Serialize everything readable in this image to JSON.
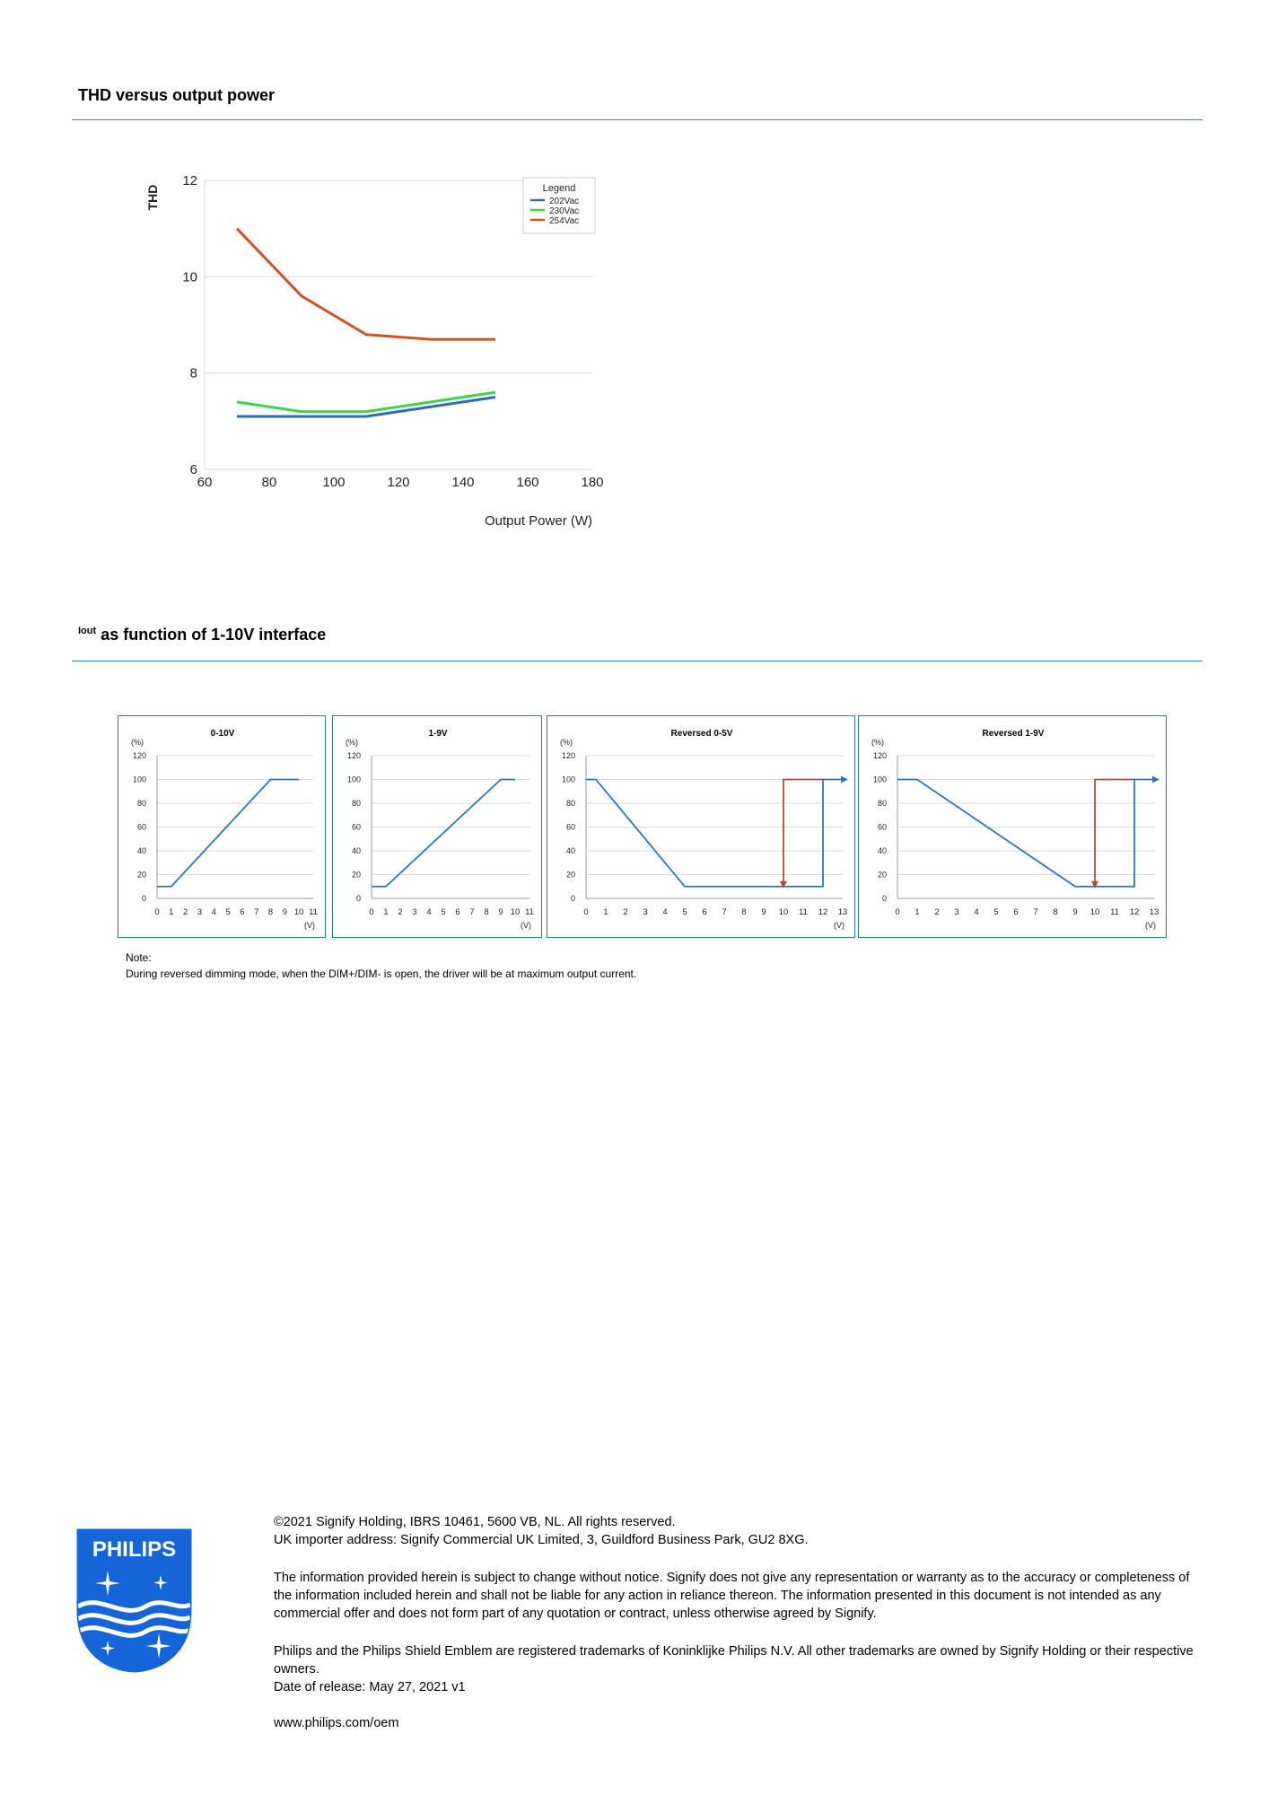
{
  "sections": {
    "thd_title": "THD versus output power",
    "iout_prefix": "Iout",
    "iout_title": "as function of 1-10V interface"
  },
  "chart_data": [
    {
      "type": "line",
      "title": "",
      "xlabel": "Output Power (W)",
      "ylabel": "THD",
      "xlim": [
        60,
        180
      ],
      "ylim": [
        6,
        12
      ],
      "xticks": [
        60,
        80,
        100,
        120,
        140,
        160,
        180
      ],
      "yticks": [
        6,
        8,
        10,
        12
      ],
      "grid": true,
      "legend_title": "Legend",
      "legend_position": "top-right",
      "series": [
        {
          "name": "202Vac",
          "color": "#2e6db0",
          "x": [
            70,
            90,
            110,
            130,
            150
          ],
          "y": [
            7.1,
            7.1,
            7.1,
            7.3,
            7.5
          ]
        },
        {
          "name": "230Vac",
          "color": "#3fd24a",
          "x": [
            70,
            90,
            110,
            130,
            150
          ],
          "y": [
            7.4,
            7.2,
            7.2,
            7.4,
            7.6
          ]
        },
        {
          "name": "254Vac",
          "color": "#cc5528",
          "x": [
            70,
            90,
            110,
            130,
            150
          ],
          "y": [
            11.0,
            9.6,
            8.8,
            8.7,
            8.7
          ]
        }
      ]
    },
    {
      "type": "line",
      "title": "0-10V",
      "ylabel": "(%)",
      "xlabel": "(V)",
      "xlim": [
        0,
        11
      ],
      "ylim": [
        0,
        120
      ],
      "xticks": [
        "0",
        "1",
        "2",
        "3",
        "4",
        "5",
        "6",
        "7",
        "8",
        "9",
        "10",
        "11"
      ],
      "yticks": [
        "0",
        "20",
        "40",
        "60",
        "80",
        "100",
        "120"
      ],
      "series": [
        {
          "color": "#2e75b6",
          "x": [
            0,
            1,
            8,
            10
          ],
          "y": [
            10,
            10,
            100,
            100
          ]
        }
      ]
    },
    {
      "type": "line",
      "title": "1-9V",
      "ylabel": "(%)",
      "xlabel": "(V)",
      "xlim": [
        0,
        11
      ],
      "ylim": [
        0,
        120
      ],
      "xticks": [
        "0",
        "1",
        "2",
        "3",
        "4",
        "5",
        "6",
        "7",
        "8",
        "9",
        "10",
        "11"
      ],
      "yticks": [
        "0",
        "20",
        "40",
        "60",
        "80",
        "100",
        "120"
      ],
      "series": [
        {
          "color": "#2e75b6",
          "x": [
            0,
            1,
            9,
            10
          ],
          "y": [
            10,
            10,
            100,
            100
          ]
        }
      ]
    },
    {
      "type": "line",
      "title": "Reversed 0-5V",
      "ylabel": "(%)",
      "xlabel": "(V)",
      "xlim": [
        0,
        13
      ],
      "ylim": [
        0,
        120
      ],
      "xticks": [
        "0",
        "1",
        "2",
        "3",
        "4",
        "5",
        "6",
        "7",
        "8",
        "9",
        "10",
        "11",
        "12",
        "13"
      ],
      "yticks": [
        "0",
        "20",
        "40",
        "60",
        "80",
        "100",
        "120"
      ],
      "series": [
        {
          "color": "#2e75b6",
          "x": [
            0,
            0.5,
            5,
            12,
            12,
            13
          ],
          "y": [
            100,
            100,
            10,
            10,
            100,
            100
          ]
        },
        {
          "color": "#b04a4a",
          "x": [
            12,
            10,
            10
          ],
          "y": [
            100,
            100,
            10
          ]
        }
      ]
    },
    {
      "type": "line",
      "title": "Reversed 1-9V",
      "ylabel": "(%)",
      "xlabel": "(V)",
      "xlim": [
        0,
        13
      ],
      "ylim": [
        0,
        120
      ],
      "xticks": [
        "0",
        "1",
        "2",
        "3",
        "4",
        "5",
        "6",
        "7",
        "8",
        "9",
        "10",
        "11",
        "12",
        "13"
      ],
      "yticks": [
        "0",
        "20",
        "40",
        "60",
        "80",
        "100",
        "120"
      ],
      "series": [
        {
          "color": "#2e75b6",
          "x": [
            0,
            1,
            9,
            12,
            12,
            13
          ],
          "y": [
            100,
            100,
            10,
            10,
            100,
            100
          ]
        },
        {
          "color": "#b04a4a",
          "x": [
            12,
            10,
            10
          ],
          "y": [
            100,
            100,
            10
          ]
        }
      ]
    }
  ],
  "note": {
    "label": "Note:",
    "text": "During reversed dimming mode, when the DIM+/DIM- is open, the driver will be at maximum output current."
  },
  "footer": {
    "copyright": "©2021 Signify Holding, IBRS 10461, 5600 VB, NL. All rights reserved.",
    "importer": "UK importer address: Signify Commercial UK Limited, 3, Guildford Business Park, GU2 8XG.",
    "disclaimer": "The information provided herein is subject to change without notice. Signify does not give any representation or warranty as to the accuracy or completeness of the information included herein and shall not be liable for any action in reliance thereon. The information presented in this document is not intended as any commercial offer and does not form part of any quotation or contract, unless otherwise agreed by Signify.",
    "trademarks": "Philips and the Philips Shield Emblem are registered trademarks of Koninklijke Philips N.V. All other trademarks are owned by Signify Holding or their respective owners.",
    "release": "Date of release: May 27, 2021 v1",
    "url": "www.philips.com/oem"
  },
  "logo": {
    "text": "PHILIPS",
    "color": "#0b5ed7"
  }
}
